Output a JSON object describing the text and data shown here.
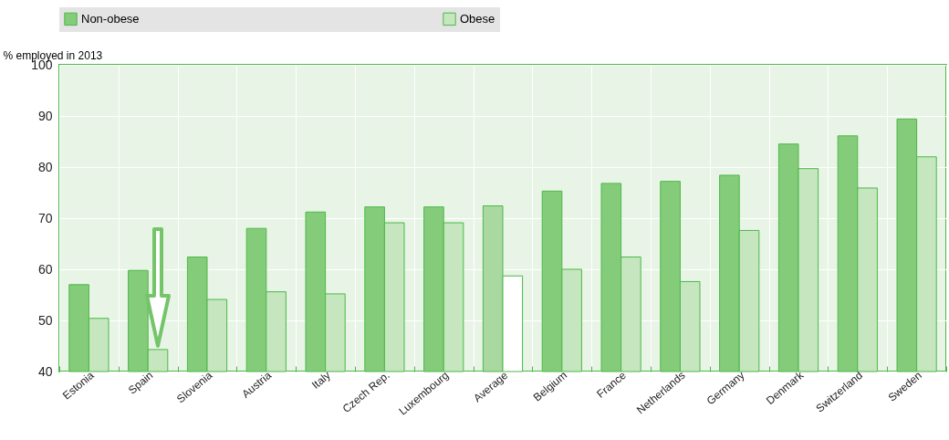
{
  "chart_data": {
    "type": "bar",
    "ylabel": "% employed in 2013",
    "categories": [
      "Estonia",
      "Spain",
      "Slovenia",
      "Austria",
      "Italy",
      "Czech Rep.",
      "Luxembourg",
      "Average",
      "Belgium",
      "France",
      "Netherlands",
      "Germany",
      "Denmark",
      "Switzerland",
      "Sweden"
    ],
    "series": [
      {
        "name": "Non-obese",
        "color": "#85cc7a",
        "colors": [
          "#85cc7a",
          "#85cc7a",
          "#85cc7a",
          "#85cc7a",
          "#85cc7a",
          "#85cc7a",
          "#85cc7a",
          "#a9d9a1",
          "#85cc7a",
          "#85cc7a",
          "#85cc7a",
          "#85cc7a",
          "#85cc7a",
          "#85cc7a",
          "#85cc7a"
        ],
        "values": [
          57.0,
          59.8,
          62.4,
          68.0,
          71.2,
          72.2,
          72.2,
          72.4,
          75.3,
          76.8,
          77.2,
          78.4,
          84.5,
          86.1,
          89.4
        ]
      },
      {
        "name": "Obese",
        "color": "#c5e6bf",
        "colors": [
          "#c5e6bf",
          "#c5e6bf",
          "#c5e6bf",
          "#c5e6bf",
          "#c5e6bf",
          "#c5e6bf",
          "#c5e6bf",
          "#ffffff",
          "#c5e6bf",
          "#c5e6bf",
          "#c5e6bf",
          "#c5e6bf",
          "#c5e6bf",
          "#c5e6bf",
          "#c5e6bf"
        ],
        "values": [
          50.4,
          44.3,
          54.1,
          55.6,
          55.2,
          69.1,
          69.1,
          58.7,
          60.0,
          62.4,
          57.6,
          67.6,
          79.7,
          75.9,
          82.0
        ]
      }
    ],
    "ylim": [
      40,
      100
    ],
    "yticks": [
      40,
      50,
      60,
      70,
      80,
      90,
      100
    ],
    "grid": true,
    "legend": "top"
  }
}
